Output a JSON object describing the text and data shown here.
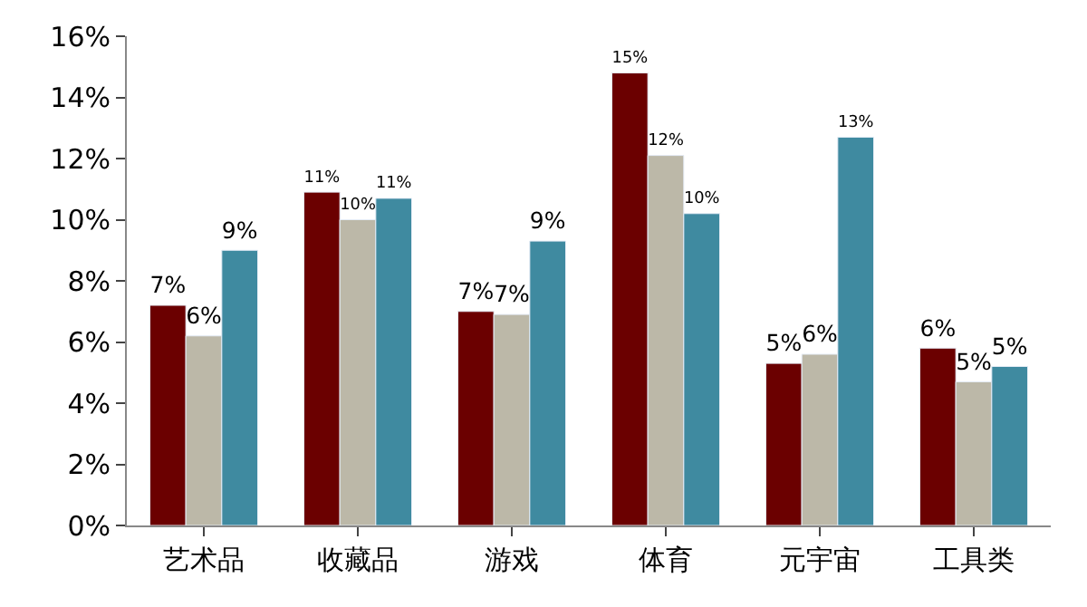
{
  "chart_data": {
    "type": "bar",
    "categories": [
      "艺术品",
      "收藏品",
      "游戏",
      "体育",
      "元宇宙",
      "工具类"
    ],
    "series": [
      {
        "color": "#6b0000",
        "values": [
          7.2,
          10.9,
          7.0,
          14.8,
          5.3,
          5.8
        ],
        "value_labels": [
          "7%",
          "11%",
          "7%",
          "15%",
          "5%",
          "6%"
        ]
      },
      {
        "color": "#bcb8a8",
        "values": [
          6.2,
          10.0,
          6.9,
          12.1,
          5.6,
          4.7
        ],
        "value_labels": [
          "6%",
          "10%",
          "7%",
          "12%",
          "6%",
          "5%"
        ]
      },
      {
        "color": "#3f8aa0",
        "values": [
          9.0,
          10.7,
          9.3,
          10.2,
          12.7,
          5.2
        ],
        "value_labels": [
          "9%",
          "11%",
          "9%",
          "10%",
          "13%",
          "5%"
        ]
      }
    ],
    "ylim": [
      0,
      16
    ],
    "yticks": [
      {
        "value": 0,
        "label": "0%"
      },
      {
        "value": 2,
        "label": "2%"
      },
      {
        "value": 4,
        "label": "4%"
      },
      {
        "value": 6,
        "label": "6%"
      },
      {
        "value": 8,
        "label": "8%"
      },
      {
        "value": 10,
        "label": "10%"
      },
      {
        "value": 12,
        "label": "12%"
      },
      {
        "value": 14,
        "label": "14%"
      },
      {
        "value": 16,
        "label": "16%"
      }
    ],
    "grid": false,
    "legend": false
  }
}
